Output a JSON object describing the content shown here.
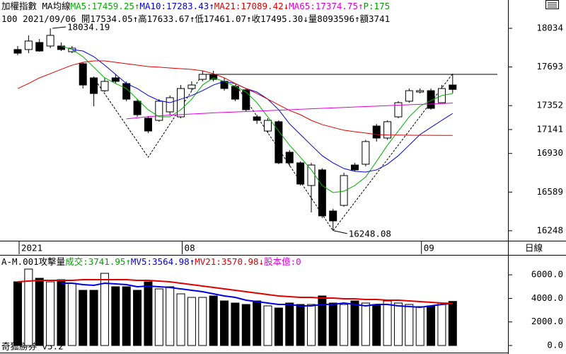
{
  "chart_data": [
    {
      "type": "candlestick",
      "title": "加權指數 MA均線",
      "info": "100 2021/09/06 開17534.05↑高17633.67↑低17461.07↑收17495.30↓量8093596↑額3741",
      "note": {
        "text": "P:175",
        "color": "#00a000"
      },
      "period": "日線",
      "categories": [
        "2021",
        null,
        null,
        null,
        null,
        null,
        null,
        null,
        null,
        null,
        null,
        null,
        null,
        null,
        null,
        "08",
        null,
        null,
        null,
        null,
        null,
        null,
        null,
        null,
        null,
        null,
        null,
        null,
        null,
        null,
        null,
        null,
        null,
        null,
        null,
        null,
        null,
        "09",
        null,
        null,
        null
      ],
      "open": [
        17847,
        17847,
        17909,
        17878,
        17878,
        17828,
        17722,
        17597,
        17484,
        17597,
        17547,
        17391,
        17241,
        17222,
        17297,
        17253,
        17503,
        17584,
        17628,
        17566,
        17522,
        17491,
        17253,
        17128,
        17210,
        16941,
        16847,
        16647,
        16785,
        16422,
        16472,
        16828,
        16835,
        17172,
        17066,
        17253,
        17391,
        17472,
        17484,
        17378,
        17534.05
      ],
      "high": [
        17878,
        17972,
        17940,
        18034.19,
        17909,
        17878,
        17734,
        17609,
        17597,
        17628,
        17566,
        17409,
        17260,
        17409,
        17441,
        17534,
        17566,
        17660,
        17660,
        17597,
        17534,
        17503,
        17272,
        17241,
        17222,
        16960,
        16860,
        16847,
        16800,
        16441,
        16760,
        16847,
        17050,
        17191,
        17222,
        17391,
        17503,
        17503,
        17503,
        17534,
        17633.67
      ],
      "low": [
        17797,
        17815,
        17828,
        17859,
        17834,
        17815,
        17503,
        17347,
        17472,
        17547,
        17391,
        17253,
        17110,
        17210,
        17272,
        17241,
        17484,
        17566,
        17566,
        17484,
        17391,
        17297,
        17191,
        17110,
        16835,
        16816,
        16647,
        16410,
        16360,
        16248.08,
        16460,
        16770,
        16816,
        17035,
        17050,
        17241,
        17378,
        17459,
        17316,
        17378,
        17461.07
      ],
      "close": [
        17815,
        17922,
        17834,
        17972,
        17847,
        17859,
        17534,
        17459,
        17566,
        17566,
        17409,
        17272,
        17128,
        17391,
        17422,
        17503,
        17534,
        17628,
        17584,
        17503,
        17409,
        17316,
        17222,
        17222,
        16847,
        16847,
        16660,
        16828,
        16379,
        16335,
        16735,
        16785,
        17035,
        17066,
        17210,
        17378,
        17484,
        17484,
        17328,
        17503,
        17495.3
      ],
      "up_color": "#ffffff",
      "down_color": "#000000",
      "series": [
        {
          "label": "MA5:17459.25↑",
          "color": "#00b000",
          "values": [
            null,
            null,
            null,
            null,
            17878,
            17847,
            17784,
            17691,
            17597,
            17547,
            17503,
            17409,
            17316,
            17253,
            17253,
            17316,
            17409,
            17534,
            17597,
            17566,
            17522,
            17472,
            17378,
            17253,
            17128,
            17003,
            16897,
            16785,
            16647,
            16585,
            16597,
            16647,
            16722,
            16860,
            17003,
            17128,
            17253,
            17347,
            17397,
            17441,
            17459
          ]
        },
        {
          "label": "MA10:17283.43↑",
          "color": "#0000e0",
          "values": [
            null,
            null,
            null,
            null,
            null,
            17847,
            17834,
            17784,
            17709,
            17628,
            17547,
            17503,
            17441,
            17397,
            17378,
            17409,
            17441,
            17484,
            17534,
            17566,
            17547,
            17503,
            17472,
            17409,
            17316,
            17191,
            17097,
            17003,
            16910,
            16847,
            16797,
            16772,
            16766,
            16785,
            16835,
            16910,
            17003,
            17097,
            17160,
            17222,
            17283
          ]
        },
        {
          "label": "MA21:17089.42↓",
          "color": "#e00000",
          "values": [
            17503,
            17547,
            17597,
            17634,
            17672,
            17709,
            17734,
            17747,
            17747,
            17734,
            17722,
            17709,
            17697,
            17691,
            17684,
            17678,
            17672,
            17659,
            17634,
            17597,
            17547,
            17503,
            17459,
            17409,
            17359,
            17309,
            17272,
            17222,
            17185,
            17160,
            17135,
            17122,
            17110,
            17097,
            17093,
            17092,
            17091,
            17090,
            17090,
            17089,
            17089
          ]
        },
        {
          "label": "MA65:17374.75↑",
          "color": "#e000e0",
          "values": [
            null,
            null,
            null,
            null,
            null,
            null,
            null,
            null,
            null,
            null,
            17235,
            17245,
            17255,
            17262,
            17268,
            17273,
            17278,
            17283,
            17288,
            17292,
            17296,
            17300,
            17304,
            17308,
            17312,
            17316,
            17320,
            17324,
            17328,
            17332,
            17336,
            17340,
            17344,
            17348,
            17352,
            17356,
            17360,
            17363,
            17366,
            17370,
            17375
          ]
        }
      ],
      "reference_line": 17628,
      "trend_lines": [
        [
          [
            7,
            17597
          ],
          [
            12,
            16897
          ],
          [
            17,
            17628
          ]
        ],
        [
          [
            20,
            17547
          ],
          [
            29,
            16248.08
          ],
          [
            40,
            17633.67
          ]
        ]
      ],
      "max_label": "18034.19",
      "min_label": "16248.08",
      "ylim": [
        16160,
        18284
      ],
      "yticks": [
        18034,
        17693,
        17352,
        17141,
        16930,
        16589,
        16248
      ]
    },
    {
      "type": "bar",
      "title": "A-M.001攻擊量",
      "label": "成交:3741.95↑",
      "label_color": "#00a000",
      "values": [
        5405,
        6486,
        5706,
        5405,
        5586,
        5285,
        4685,
        4685,
        6126,
        4985,
        4985,
        4685,
        5405,
        4805,
        4985,
        4384,
        4084,
        4084,
        4204,
        3784,
        3604,
        3483,
        3784,
        3363,
        3183,
        3604,
        3483,
        3483,
        4204,
        3604,
        3483,
        3784,
        3604,
        3483,
        3784,
        3604,
        3483,
        3303,
        3363,
        3604,
        3741.95
      ],
      "series": [
        {
          "label": "MV5:3564.98↑",
          "color": "#0000e0",
          "values": [
            null,
            null,
            null,
            null,
            5285,
            5285,
            5165,
            5105,
            5285,
            5225,
            5165,
            4985,
            5045,
            4985,
            4925,
            4805,
            4685,
            4565,
            4384,
            4204,
            4084,
            3844,
            3724,
            3604,
            3483,
            3483,
            3363,
            3363,
            3483,
            3483,
            3604,
            3483,
            3363,
            3483,
            3483,
            3363,
            3303,
            3243,
            3363,
            3483,
            3565
          ]
        },
        {
          "label": "MV21:3570.98↓",
          "color": "#e00000",
          "values": [
            5405,
            5465,
            5525,
            5525,
            5525,
            5525,
            5586,
            5586,
            5586,
            5586,
            5586,
            5525,
            5525,
            5465,
            5405,
            5285,
            5165,
            5045,
            4925,
            4805,
            4685,
            4565,
            4444,
            4324,
            4204,
            4144,
            4084,
            4084,
            4024,
            4024,
            3964,
            3964,
            3904,
            3904,
            3844,
            3844,
            3784,
            3724,
            3664,
            3604,
            3571
          ]
        }
      ],
      "note": {
        "text": "股本億:0",
        "color": "#e000e0"
      },
      "footer": "奇狐勝券 v5.2",
      "ylim": [
        -540,
        7570
      ],
      "yticks": [
        {
          "value": 6000,
          "label": "6000.0"
        },
        {
          "value": 4000,
          "label": "4000.0"
        },
        {
          "value": 2000,
          "label": "2000.0"
        },
        {
          "value": 0,
          "label": "0.0"
        }
      ]
    }
  ]
}
